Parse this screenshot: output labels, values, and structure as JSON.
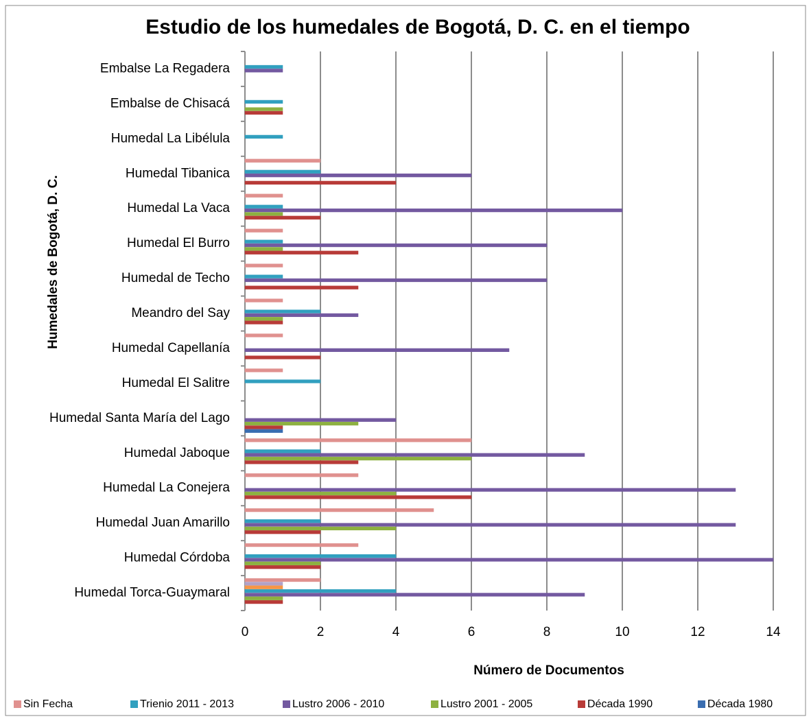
{
  "chart_data": {
    "type": "bar",
    "orientation": "horizontal",
    "title": "Estudio de los humedales de Bogotá, D. C. en el tiempo",
    "x_label": "Número de Documentos",
    "y_label": "Humedales de Bogotá, D. C.",
    "categories": [
      "Embalse La Regadera",
      "Embalse de Chisacá",
      "Humedal La Libélula",
      "Humedal Tibanica",
      "Humedal La Vaca",
      "Humedal El Burro",
      "Humedal de Techo",
      "Meandro del Say",
      "Humedal Capellanía",
      "Humedal El Salitre",
      "Humedal Santa María del Lago",
      "Humedal Jaboque",
      "Humedal La Conejera",
      "Humedal Juan Amarillo",
      "Humedal Córdoba",
      "Humedal Torca-Guaymaral"
    ],
    "series": [
      {
        "name": "Sin Fecha",
        "color": "#e0918f",
        "values": [
          null,
          null,
          null,
          2,
          1,
          1,
          1,
          1,
          1,
          1,
          null,
          6,
          3,
          5,
          3,
          2
        ]
      },
      {
        "color": "#b3a2c7",
        "values": [
          null,
          null,
          null,
          null,
          null,
          null,
          null,
          null,
          null,
          null,
          null,
          null,
          null,
          null,
          null,
          1
        ]
      },
      {
        "color": "#f79646",
        "values": [
          null,
          null,
          null,
          null,
          null,
          null,
          null,
          null,
          null,
          null,
          null,
          null,
          null,
          null,
          null,
          1
        ]
      },
      {
        "name": "Trienio 2011 - 2013",
        "color": "#31a0bf",
        "values": [
          1,
          1,
          1,
          2,
          1,
          1,
          1,
          2,
          null,
          2,
          null,
          2,
          null,
          2,
          4,
          4
        ]
      },
      {
        "name": "Lustro 2006 - 2010",
        "color": "#7359a0",
        "values": [
          1,
          null,
          null,
          6,
          10,
          8,
          8,
          3,
          7,
          null,
          4,
          9,
          13,
          13,
          14,
          9
        ]
      },
      {
        "name": "Lustro 2001 - 2005",
        "color": "#8db140",
        "values": [
          null,
          1,
          null,
          null,
          1,
          1,
          null,
          1,
          null,
          null,
          3,
          6,
          4,
          4,
          2,
          1
        ]
      },
      {
        "name": "Década 1990",
        "color": "#b83b38",
        "values": [
          null,
          1,
          null,
          4,
          2,
          3,
          3,
          1,
          2,
          null,
          1,
          3,
          6,
          2,
          2,
          1
        ]
      },
      {
        "name": "Década 1980",
        "color": "#3a6db0",
        "values": [
          null,
          null,
          null,
          null,
          null,
          null,
          null,
          null,
          null,
          null,
          1,
          null,
          null,
          null,
          null,
          null
        ]
      }
    ],
    "xlim": [
      0,
      14
    ],
    "xticks": [
      0,
      2,
      4,
      6,
      8,
      10,
      12,
      14
    ],
    "grid": true,
    "legend": "bottom"
  }
}
